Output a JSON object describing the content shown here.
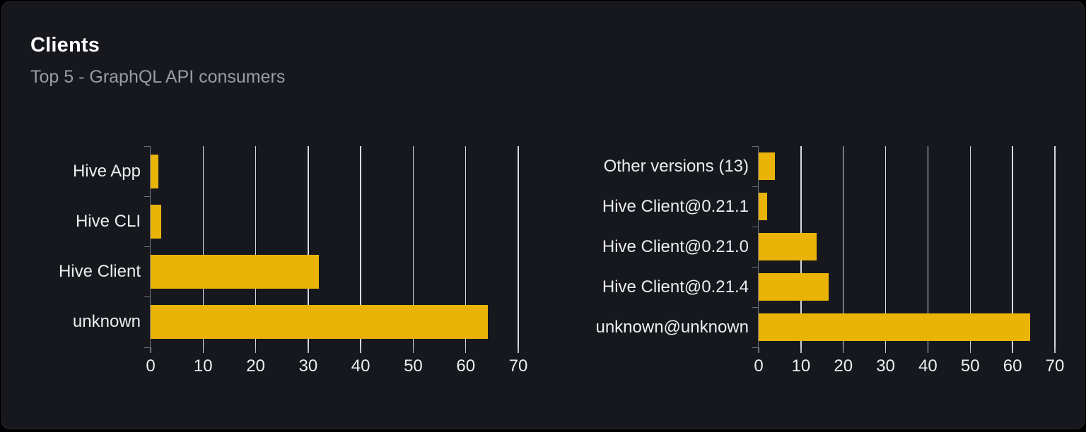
{
  "panel": {
    "title": "Clients",
    "subtitle": "Top 5 - GraphQL API consumers"
  },
  "colors": {
    "page_bg": "#000000",
    "card_bg": "#16181d",
    "card_border": "#26282f",
    "title_text": "#ffffff",
    "subtitle_text": "#9a9ca2",
    "bar": "#eab308",
    "grid_line": "#e6ebf3",
    "axis_line": "#6e7178",
    "label_text": "#eceef1"
  },
  "chart_data": [
    {
      "type": "bar",
      "orientation": "horizontal",
      "title": "",
      "categories": [
        "Hive App",
        "Hive CLI",
        "Hive Client",
        "unknown"
      ],
      "values": [
        1.5,
        2.0,
        32.1,
        64.2
      ],
      "xlabel": "",
      "ylabel": "",
      "xlim": [
        0,
        70
      ],
      "x_ticks": [
        0,
        10,
        20,
        30,
        40,
        50,
        60,
        70
      ],
      "grid": true,
      "legend": false
    },
    {
      "type": "bar",
      "orientation": "horizontal",
      "title": "",
      "categories": [
        "Other versions (13)",
        "Hive Client@0.21.1",
        "Hive Client@0.21.0",
        "Hive Client@0.21.4",
        "unknown@unknown"
      ],
      "values": [
        3.9,
        2.0,
        13.7,
        16.5,
        64.1
      ],
      "xlabel": "",
      "ylabel": "",
      "xlim": [
        0,
        70
      ],
      "x_ticks": [
        0,
        10,
        20,
        30,
        40,
        50,
        60,
        70
      ],
      "grid": true,
      "legend": false
    }
  ]
}
